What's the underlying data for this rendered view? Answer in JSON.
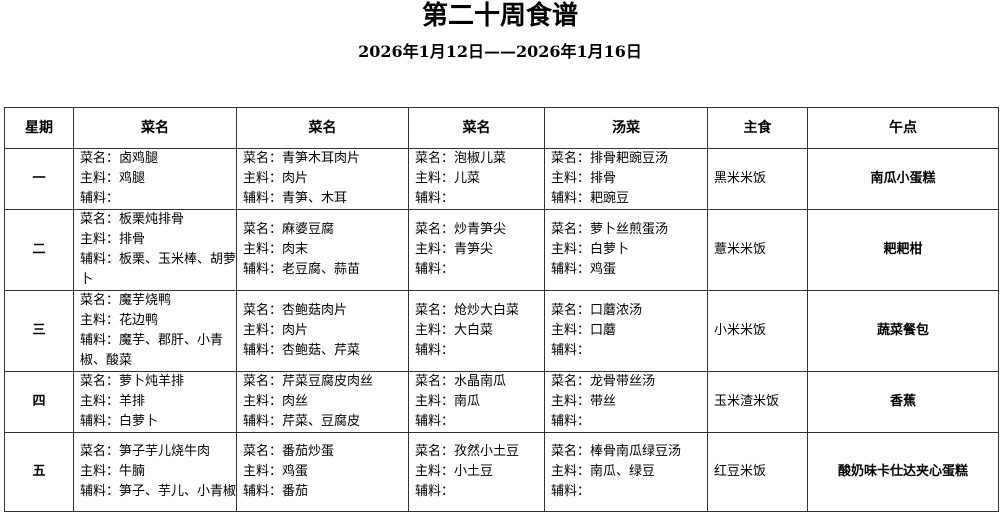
{
  "title": "第二十周食谱",
  "subtitle": "2026年1月12日——2026年1月16日",
  "headers": [
    "星期",
    "菜名",
    "菜名",
    "菜名",
    "汤菜",
    "主食",
    "午点"
  ],
  "rows": [
    {
      "day": "一",
      "dishes": [
        [
          "菜名：卤鸡腿",
          "主料：鸡腿",
          "辅料："
        ],
        [
          "菜名：青笋木耳肉片",
          "主料：肉片",
          "辅料：青笋、木耳"
        ],
        [
          "菜名：泡椒儿菜",
          "主料：儿菜",
          "辅料："
        ],
        [
          "菜名：排骨耙豌豆汤",
          "主料：排骨",
          "辅料：耙豌豆"
        ]
      ],
      "staple": "黑米米饭",
      "snack": "南瓜小蛋糕"
    },
    {
      "day": "二",
      "dishes": [
        [
          "菜名：板栗炖排骨",
          "主料：排骨",
          "辅料：板栗、玉米棒、胡萝卜"
        ],
        [
          "菜名：麻婆豆腐",
          "主料：肉末",
          "辅料：老豆腐、蒜苗"
        ],
        [
          "菜名：炒青笋尖",
          "主料：青笋尖",
          "辅料："
        ],
        [
          "菜名：萝卜丝煎蛋汤",
          "主料：白萝卜",
          "辅料：鸡蛋"
        ]
      ],
      "staple": "薏米米饭",
      "snack": "耙耙柑"
    },
    {
      "day": "三",
      "dishes": [
        [
          "菜名：魔芋烧鸭",
          "主料：花边鸭",
          "辅料：魔芋、郡肝、小青椒、酸菜"
        ],
        [
          "菜名：杏鲍菇肉片",
          "主料：肉片",
          "辅料：杏鲍菇、芹菜"
        ],
        [
          "菜名：炝炒大白菜",
          "主料：大白菜",
          "辅料："
        ],
        [
          "菜名：口蘑浓汤",
          "主料：口蘑",
          "辅料："
        ]
      ],
      "staple": "小米米饭",
      "snack": "蔬菜餐包"
    },
    {
      "day": "四",
      "dishes": [
        [
          "菜名：萝卜炖羊排",
          "主料：羊排",
          "辅料：白萝卜"
        ],
        [
          "菜名：芹菜豆腐皮肉丝",
          "主料：肉丝",
          "辅料：芹菜、豆腐皮"
        ],
        [
          "菜名：水晶南瓜",
          "主料：南瓜",
          "辅料："
        ],
        [
          "菜名：龙骨带丝汤",
          "主料：带丝",
          "辅料："
        ]
      ],
      "staple": "玉米渣米饭",
      "snack": "香蕉"
    },
    {
      "day": "五",
      "dishes": [
        [
          "菜名：笋子芋儿烧牛肉",
          "主料：牛腩",
          "辅料：笋子、芋儿、小青椒"
        ],
        [
          "菜名：番茄炒蛋",
          "主料：鸡蛋",
          "辅料：番茄"
        ],
        [
          "菜名：孜然小土豆",
          "主料：小土豆",
          "辅料："
        ],
        [
          "菜名：棒骨南瓜绿豆汤",
          "主料：南瓜、绿豆",
          "辅料："
        ]
      ],
      "staple": "红豆米饭",
      "snack": "酸奶味卡仕达夹心蛋糕"
    }
  ]
}
